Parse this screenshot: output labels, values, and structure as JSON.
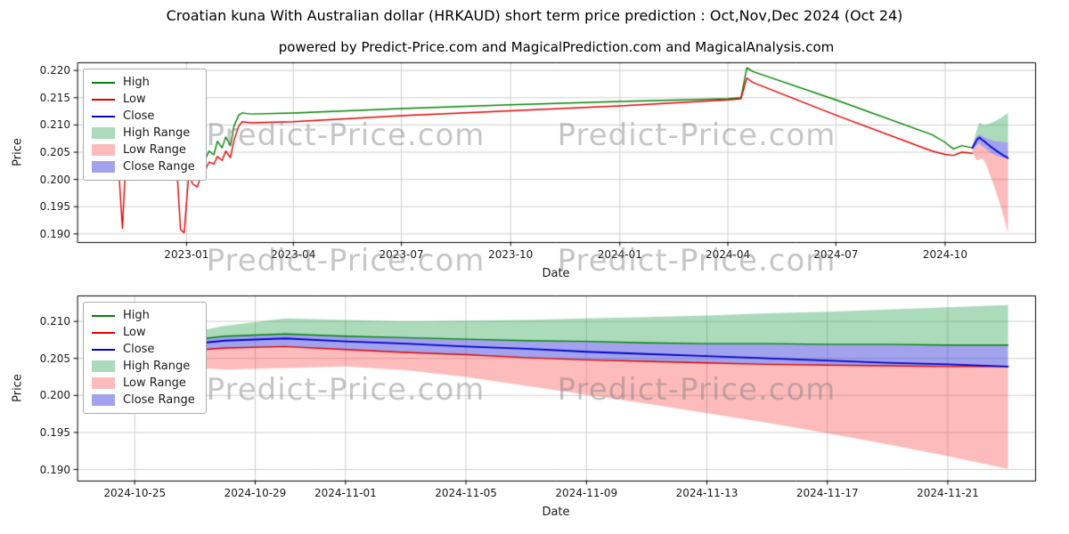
{
  "figure": {
    "title": "Croatian kuna With Australian dollar (HRKAUD) short term price prediction : Oct,Nov,Dec 2024 (Oct 24)",
    "subtitle": "powered by Predict-Price.com and MagicalPrediction.com and MagicalAnalysis.com",
    "watermark": "Predict-Price.com",
    "background": "#ffffff"
  },
  "legend": {
    "entries": [
      {
        "label": "High",
        "type": "line",
        "color": "#008000"
      },
      {
        "label": "Low",
        "type": "line",
        "color": "#dd0000"
      },
      {
        "label": "Close",
        "type": "line",
        "color": "#0000cd"
      },
      {
        "label": "High Range",
        "type": "patch",
        "color": "rgba(0,145,45,0.33)"
      },
      {
        "label": "Low Range",
        "type": "patch",
        "color": "rgba(250,45,45,0.32)"
      },
      {
        "label": "Close Range",
        "type": "patch",
        "color": "rgba(50,50,215,0.45)"
      }
    ]
  },
  "chart_data": [
    {
      "type": "line",
      "name": "HRKAUD price history with short-term forecast overlay",
      "xlabel": "Date",
      "ylabel": "Price",
      "ylim": [
        0.1885,
        0.2215
      ],
      "grid": true,
      "legend_position": "upper left",
      "yticks": [
        {
          "label": "0.190",
          "value": 0.19
        },
        {
          "label": "0.195",
          "value": 0.195
        },
        {
          "label": "0.200",
          "value": 0.2
        },
        {
          "label": "0.205",
          "value": 0.205
        },
        {
          "label": "0.210",
          "value": 0.21
        },
        {
          "label": "0.215",
          "value": 0.215
        },
        {
          "label": "0.220",
          "value": 0.22
        }
      ],
      "xticks": [
        {
          "label": "2023-01",
          "date": "2023-01-01"
        },
        {
          "label": "2023-04",
          "date": "2023-04-01"
        },
        {
          "label": "2023-07",
          "date": "2023-07-01"
        },
        {
          "label": "2023-10",
          "date": "2023-10-01"
        },
        {
          "label": "2024-01",
          "date": "2024-01-01"
        },
        {
          "label": "2024-04",
          "date": "2024-04-01"
        },
        {
          "label": "2024-07",
          "date": "2024-07-01"
        },
        {
          "label": "2024-10",
          "date": "2024-10-01"
        }
      ],
      "forecast_overlay_from": 1,
      "series": {
        "high": {
          "name": "High",
          "color": "#008000",
          "dates": [
            "2022-10-24",
            "2022-10-28",
            "2022-11-01",
            "2022-11-04",
            "2022-11-08",
            "2022-11-11",
            "2022-11-15",
            "2022-11-18",
            "2022-11-22",
            "2022-11-25",
            "2022-11-29",
            "2022-12-02",
            "2022-12-06",
            "2022-12-09",
            "2022-12-13",
            "2022-12-16",
            "2022-12-20",
            "2022-12-23",
            "2022-12-27",
            "2022-12-30",
            "2023-01-03",
            "2023-01-06",
            "2023-01-10",
            "2023-01-13",
            "2023-01-17",
            "2023-01-20",
            "2023-01-24",
            "2023-01-27",
            "2023-01-31",
            "2023-02-03",
            "2023-02-07",
            "2023-02-10",
            "2023-02-14",
            "2023-02-17",
            "2023-02-24",
            "2023-04-01",
            "2023-07-01",
            "2023-10-01",
            "2024-01-01",
            "2024-04-01",
            "2024-04-12",
            "2024-04-17",
            "2024-04-22",
            "2024-07-01",
            "2024-09-20",
            "2024-10-01",
            "2024-10-08",
            "2024-10-15",
            "2024-10-24"
          ],
          "values": [
            0.206,
            0.2052,
            0.2088,
            0.211,
            0.2072,
            0.2095,
            0.213,
            0.2068,
            0.209,
            0.2072,
            0.2118,
            0.2078,
            0.2125,
            0.2088,
            0.2112,
            0.2128,
            0.2082,
            0.2105,
            0.2096,
            0.2102,
            0.2058,
            0.2028,
            0.2022,
            0.2048,
            0.2038,
            0.2052,
            0.2045,
            0.207,
            0.2058,
            0.2078,
            0.2062,
            0.2098,
            0.2118,
            0.2122,
            0.212,
            0.2122,
            0.213,
            0.2137,
            0.2143,
            0.2148,
            0.215,
            0.2205,
            0.2198,
            0.2146,
            0.2082,
            0.2068,
            0.2056,
            0.2062,
            0.2058
          ]
        },
        "low": {
          "name": "Low",
          "color": "#dd0000",
          "dates": [
            "2022-10-24",
            "2022-10-28",
            "2022-11-01",
            "2022-11-04",
            "2022-11-08",
            "2022-11-11",
            "2022-11-15",
            "2022-11-18",
            "2022-11-22",
            "2022-11-25",
            "2022-11-29",
            "2022-12-02",
            "2022-12-06",
            "2022-12-09",
            "2022-12-13",
            "2022-12-16",
            "2022-12-20",
            "2022-12-23",
            "2022-12-27",
            "2022-12-30",
            "2023-01-03",
            "2023-01-06",
            "2023-01-10",
            "2023-01-13",
            "2023-01-17",
            "2023-01-20",
            "2023-01-24",
            "2023-01-27",
            "2023-01-31",
            "2023-02-03",
            "2023-02-07",
            "2023-02-10",
            "2023-02-14",
            "2023-02-17",
            "2023-02-24",
            "2023-04-01",
            "2023-07-01",
            "2023-10-01",
            "2024-01-01",
            "2024-04-01",
            "2024-04-12",
            "2024-04-17",
            "2024-04-22",
            "2024-07-01",
            "2024-09-20",
            "2024-10-01",
            "2024-10-08",
            "2024-10-15",
            "2024-10-24"
          ],
          "values": [
            0.2038,
            0.203,
            0.2042,
            0.205,
            0.191,
            0.204,
            0.2055,
            0.2032,
            0.2045,
            0.2038,
            0.2058,
            0.204,
            0.2052,
            0.2042,
            0.2055,
            0.2058,
            0.204,
            0.2048,
            0.1908,
            0.1902,
            0.2012,
            0.1992,
            0.1986,
            0.2005,
            0.2018,
            0.2032,
            0.2028,
            0.2042,
            0.2035,
            0.2052,
            0.204,
            0.2072,
            0.2098,
            0.2106,
            0.2104,
            0.2106,
            0.2117,
            0.2126,
            0.2135,
            0.2146,
            0.2148,
            0.2186,
            0.2178,
            0.2118,
            0.2052,
            0.2046,
            0.2044,
            0.205,
            0.2048
          ]
        }
      }
    },
    {
      "type": "line",
      "name": "HRKAUD short term forecast Oct-Nov-Dec 2024",
      "xlabel": "Date",
      "ylabel": "Price",
      "ylim": [
        0.1885,
        0.2135
      ],
      "grid": true,
      "legend_position": "upper left",
      "yticks": [
        {
          "label": "0.190",
          "value": 0.19
        },
        {
          "label": "0.195",
          "value": 0.195
        },
        {
          "label": "0.200",
          "value": 0.2
        },
        {
          "label": "0.205",
          "value": 0.205
        },
        {
          "label": "0.210",
          "value": 0.21
        }
      ],
      "xticks": [
        {
          "label": "2024-10-25",
          "date": "2024-10-25"
        },
        {
          "label": "2024-10-29",
          "date": "2024-10-29"
        },
        {
          "label": "2024-11-01",
          "date": "2024-11-01"
        },
        {
          "label": "2024-11-05",
          "date": "2024-11-05"
        },
        {
          "label": "2024-11-09",
          "date": "2024-11-09"
        },
        {
          "label": "2024-11-13",
          "date": "2024-11-13"
        },
        {
          "label": "2024-11-17",
          "date": "2024-11-17"
        },
        {
          "label": "2024-11-21",
          "date": "2024-11-21"
        }
      ],
      "series": {
        "high": {
          "name": "High",
          "color": "#008000",
          "dates": [
            "2024-10-24",
            "2024-10-26",
            "2024-10-28",
            "2024-10-30",
            "2024-11-01",
            "2024-11-03",
            "2024-11-05",
            "2024-11-07",
            "2024-11-09",
            "2024-11-11",
            "2024-11-13",
            "2024-11-15",
            "2024-11-17",
            "2024-11-19",
            "2024-11-21",
            "2024-11-23"
          ],
          "values": [
            0.2062,
            0.2071,
            0.208,
            0.2083,
            0.208,
            0.2078,
            0.2076,
            0.2074,
            0.2073,
            0.2071,
            0.207,
            0.207,
            0.2069,
            0.2069,
            0.2068,
            0.2068
          ]
        },
        "low": {
          "name": "Low",
          "color": "#dd0000",
          "dates": [
            "2024-10-24",
            "2024-10-26",
            "2024-10-28",
            "2024-10-30",
            "2024-11-01",
            "2024-11-03",
            "2024-11-05",
            "2024-11-07",
            "2024-11-09",
            "2024-11-11",
            "2024-11-13",
            "2024-11-15",
            "2024-11-17",
            "2024-11-19",
            "2024-11-21",
            "2024-11-23"
          ],
          "values": [
            0.2054,
            0.2058,
            0.2064,
            0.2066,
            0.2062,
            0.2058,
            0.2055,
            0.2051,
            0.2048,
            0.2046,
            0.2044,
            0.2042,
            0.2041,
            0.204,
            0.2039,
            0.2039
          ]
        },
        "close": {
          "name": "Close",
          "color": "#0000cd",
          "dates": [
            "2024-10-24",
            "2024-10-26",
            "2024-10-28",
            "2024-10-30",
            "2024-11-01",
            "2024-11-03",
            "2024-11-05",
            "2024-11-07",
            "2024-11-09",
            "2024-11-11",
            "2024-11-13",
            "2024-11-15",
            "2024-11-17",
            "2024-11-19",
            "2024-11-21",
            "2024-11-23"
          ],
          "values": [
            0.2058,
            0.2066,
            0.2074,
            0.2077,
            0.2073,
            0.207,
            0.2066,
            0.2063,
            0.2059,
            0.2056,
            0.2053,
            0.205,
            0.2047,
            0.2044,
            0.2042,
            0.2039
          ]
        }
      },
      "bands": {
        "high_range": {
          "name": "High Range",
          "color": "rgba(0,145,45,0.33)",
          "dates": [
            "2024-10-24",
            "2024-10-26",
            "2024-10-28",
            "2024-10-30",
            "2024-11-01",
            "2024-11-03",
            "2024-11-05",
            "2024-11-07",
            "2024-11-09",
            "2024-11-11",
            "2024-11-13",
            "2024-11-15",
            "2024-11-17",
            "2024-11-19",
            "2024-11-21",
            "2024-11-23"
          ],
          "top": [
            0.2064,
            0.2078,
            0.2094,
            0.2104,
            0.2102,
            0.21,
            0.2101,
            0.2102,
            0.2104,
            0.2106,
            0.2108,
            0.2111,
            0.2113,
            0.2116,
            0.2119,
            0.2122
          ],
          "bottom": [
            0.2062,
            0.2071,
            0.208,
            0.2083,
            0.208,
            0.2078,
            0.2076,
            0.2074,
            0.2073,
            0.2071,
            0.207,
            0.207,
            0.2069,
            0.2069,
            0.2068,
            0.2068
          ]
        },
        "low_range": {
          "name": "Low Range",
          "color": "rgba(250,45,45,0.32)",
          "dates": [
            "2024-10-24",
            "2024-10-26",
            "2024-10-28",
            "2024-10-30",
            "2024-11-01",
            "2024-11-03",
            "2024-11-05",
            "2024-11-07",
            "2024-11-09",
            "2024-11-11",
            "2024-11-13",
            "2024-11-15",
            "2024-11-17",
            "2024-11-19",
            "2024-11-21",
            "2024-11-23"
          ],
          "top": [
            0.2054,
            0.2058,
            0.2064,
            0.2066,
            0.2062,
            0.2058,
            0.2055,
            0.2051,
            0.2048,
            0.2046,
            0.2044,
            0.2042,
            0.2041,
            0.204,
            0.2039,
            0.2039
          ],
          "bottom": [
            0.2052,
            0.204,
            0.2035,
            0.2037,
            0.2039,
            0.2034,
            0.2025,
            0.2013,
            0.2001,
            0.1989,
            0.1976,
            0.1963,
            0.1949,
            0.1934,
            0.1918,
            0.1901
          ]
        },
        "close_range": {
          "name": "Close Range",
          "color": "rgba(50,50,215,0.45)",
          "dates": [
            "2024-10-24",
            "2024-10-26",
            "2024-10-28",
            "2024-10-30",
            "2024-11-01",
            "2024-11-03",
            "2024-11-05",
            "2024-11-07",
            "2024-11-09",
            "2024-11-11",
            "2024-11-13",
            "2024-11-15",
            "2024-11-17",
            "2024-11-19",
            "2024-11-21",
            "2024-11-23"
          ],
          "top": [
            0.2062,
            0.2071,
            0.208,
            0.2083,
            0.208,
            0.2078,
            0.2076,
            0.2074,
            0.2073,
            0.2071,
            0.207,
            0.207,
            0.2069,
            0.2069,
            0.2068,
            0.2068
          ],
          "bottom": [
            0.2054,
            0.2058,
            0.2064,
            0.2066,
            0.2062,
            0.2058,
            0.2055,
            0.2051,
            0.2048,
            0.2046,
            0.2044,
            0.2042,
            0.2041,
            0.204,
            0.2039,
            0.2039
          ]
        }
      }
    }
  ]
}
